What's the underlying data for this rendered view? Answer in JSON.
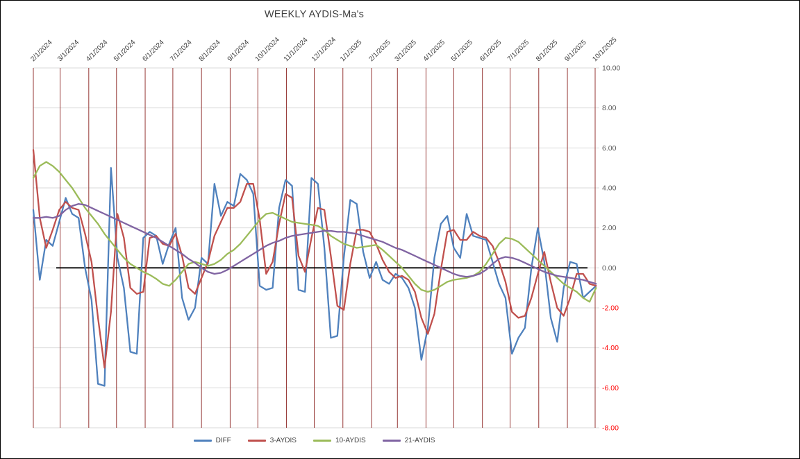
{
  "chart_data": {
    "type": "line",
    "title": "WEEKLY AYDIS-Ma's",
    "grid": "on",
    "legend_position": "bottom",
    "ylim": [
      -8,
      10
    ],
    "weeks_total": 86.86,
    "colors": {
      "vertical_grid": "#953735",
      "horizontal_grid": "#D9D9D9",
      "zero_line": "#000000",
      "axis_label": "#595959",
      "date_label": "#404040",
      "negative_label": "#FF0000"
    },
    "y_ticks": [
      {
        "value": 10,
        "label": "10.00"
      },
      {
        "value": 8,
        "label": "8.00"
      },
      {
        "value": 6,
        "label": "6.00"
      },
      {
        "value": 4,
        "label": "4.00"
      },
      {
        "value": 2,
        "label": "2.00"
      },
      {
        "value": 0,
        "label": "0.00"
      },
      {
        "value": -2,
        "label": "-2.00"
      },
      {
        "value": -4,
        "label": "-4.00"
      },
      {
        "value": -6,
        "label": "-6.00"
      },
      {
        "value": -8,
        "label": "-8.00"
      }
    ],
    "x_ticks": [
      {
        "label": "2/1/2024",
        "week": 0
      },
      {
        "label": "3/1/2024",
        "week": 4.14
      },
      {
        "label": "4/1/2024",
        "week": 8.57
      },
      {
        "label": "5/1/2024",
        "week": 12.86
      },
      {
        "label": "6/1/2024",
        "week": 17.29
      },
      {
        "label": "7/1/2024",
        "week": 21.57
      },
      {
        "label": "8/1/2024",
        "week": 26.0
      },
      {
        "label": "9/1/2024",
        "week": 30.43
      },
      {
        "label": "10/1/2024",
        "week": 34.71
      },
      {
        "label": "11/1/2024",
        "week": 39.14
      },
      {
        "label": "12/1/2024",
        "week": 43.43
      },
      {
        "label": "1/1/2025",
        "week": 47.86
      },
      {
        "label": "2/1/2025",
        "week": 52.29
      },
      {
        "label": "3/1/2025",
        "week": 56.29
      },
      {
        "label": "4/1/2025",
        "week": 60.71
      },
      {
        "label": "5/1/2025",
        "week": 65.0
      },
      {
        "label": "6/1/2025",
        "week": 69.43
      },
      {
        "label": "7/1/2025",
        "week": 73.71
      },
      {
        "label": "8/1/2025",
        "week": 78.14
      },
      {
        "label": "9/1/2025",
        "week": 82.57
      },
      {
        "label": "10/1/2025",
        "week": 86.86
      }
    ],
    "series": [
      {
        "name": "DIFF",
        "color": "#4F81BD",
        "values": [
          2.9,
          -0.6,
          1.4,
          1.1,
          2.3,
          3.5,
          2.7,
          2.5,
          0.0,
          -1.6,
          -5.8,
          -5.9,
          5.0,
          0.5,
          -1.0,
          -4.2,
          -4.3,
          1.5,
          1.8,
          1.6,
          0.2,
          1.2,
          2.0,
          -1.5,
          -2.6,
          -2.0,
          0.5,
          0.2,
          4.2,
          2.6,
          3.3,
          3.1,
          4.7,
          4.4,
          3.7,
          -0.9,
          -1.1,
          -1.0,
          3.0,
          4.4,
          4.1,
          -1.1,
          -1.2,
          4.5,
          4.2,
          1.0,
          -3.5,
          -3.4,
          0.5,
          3.4,
          3.2,
          0.8,
          -0.5,
          0.3,
          -0.6,
          -0.8,
          -0.3,
          -0.5,
          -1.0,
          -2.0,
          -4.6,
          -3.0,
          0.5,
          2.2,
          2.6,
          1.0,
          0.5,
          2.7,
          1.6,
          1.5,
          1.4,
          0.3,
          -0.8,
          -1.5,
          -4.3,
          -3.5,
          -3.0,
          0.0,
          2.0,
          0.3,
          -2.5,
          -3.7,
          -1.0,
          0.3,
          0.2,
          -1.5,
          -1.2,
          -0.9
        ]
      },
      {
        "name": "3-AYDIS",
        "color": "#C0504D",
        "values": [
          5.9,
          2.5,
          1.0,
          1.9,
          2.9,
          3.3,
          3.0,
          2.9,
          1.7,
          0.3,
          -2.5,
          -5.0,
          -2.2,
          2.7,
          1.5,
          -1.0,
          -1.3,
          -1.2,
          1.5,
          1.6,
          1.2,
          1.1,
          1.7,
          0.6,
          -1.0,
          -1.3,
          -0.5,
          0.3,
          1.6,
          2.3,
          3.0,
          3.0,
          3.3,
          4.2,
          4.2,
          2.4,
          -0.3,
          0.3,
          2.2,
          3.7,
          3.5,
          0.6,
          -0.2,
          1.5,
          3.0,
          2.9,
          0.6,
          -1.9,
          -2.1,
          0.2,
          1.9,
          1.9,
          1.8,
          1.2,
          0.4,
          -0.2,
          -0.5,
          -0.4,
          -0.6,
          -1.2,
          -2.5,
          -3.3,
          -2.3,
          -0.1,
          1.8,
          1.9,
          1.4,
          1.4,
          1.8,
          1.6,
          1.5,
          1.1,
          0.3,
          -0.7,
          -2.2,
          -2.5,
          -2.4,
          -1.5,
          -0.3,
          0.8,
          -0.7,
          -2.0,
          -2.4,
          -1.5,
          -0.3,
          -0.3,
          -0.8,
          -0.9
        ]
      },
      {
        "name": "10-AYDIS",
        "color": "#9BBB59",
        "values": [
          4.5,
          5.1,
          5.3,
          5.1,
          4.8,
          4.4,
          4.0,
          3.5,
          3.0,
          2.6,
          2.2,
          1.7,
          1.3,
          0.9,
          0.5,
          0.2,
          0.0,
          -0.2,
          -0.35,
          -0.55,
          -0.8,
          -0.9,
          -0.6,
          -0.2,
          0.2,
          0.3,
          0.2,
          0.1,
          0.2,
          0.4,
          0.7,
          0.9,
          1.2,
          1.6,
          2.0,
          2.4,
          2.7,
          2.75,
          2.6,
          2.45,
          2.3,
          2.25,
          2.2,
          2.15,
          2.1,
          1.9,
          1.6,
          1.4,
          1.2,
          1.1,
          1.0,
          1.05,
          1.1,
          1.15,
          0.9,
          0.6,
          0.3,
          0.0,
          -0.4,
          -0.8,
          -1.1,
          -1.2,
          -1.1,
          -0.9,
          -0.7,
          -0.6,
          -0.55,
          -0.5,
          -0.4,
          -0.2,
          0.2,
          0.7,
          1.2,
          1.5,
          1.45,
          1.3,
          1.0,
          0.7,
          0.4,
          0.1,
          -0.2,
          -0.5,
          -0.8,
          -1.0,
          -1.2,
          -1.5,
          -1.7,
          -1.0
        ]
      },
      {
        "name": "21-AYDIS",
        "color": "#8064A2",
        "values": [
          2.5,
          2.5,
          2.55,
          2.5,
          2.6,
          2.9,
          3.1,
          3.2,
          3.15,
          3.0,
          2.85,
          2.7,
          2.55,
          2.4,
          2.25,
          2.1,
          1.95,
          1.8,
          1.65,
          1.5,
          1.3,
          1.1,
          0.9,
          0.7,
          0.45,
          0.25,
          0.0,
          -0.2,
          -0.3,
          -0.25,
          -0.1,
          0.1,
          0.3,
          0.5,
          0.7,
          0.9,
          1.1,
          1.25,
          1.35,
          1.5,
          1.6,
          1.65,
          1.7,
          1.75,
          1.8,
          1.85,
          1.85,
          1.8,
          1.8,
          1.75,
          1.7,
          1.6,
          1.5,
          1.4,
          1.3,
          1.15,
          1.0,
          0.9,
          0.75,
          0.6,
          0.45,
          0.3,
          0.15,
          0.0,
          -0.15,
          -0.3,
          -0.4,
          -0.45,
          -0.4,
          -0.3,
          -0.1,
          0.2,
          0.45,
          0.55,
          0.5,
          0.4,
          0.25,
          0.1,
          -0.05,
          -0.2,
          -0.3,
          -0.4,
          -0.45,
          -0.5,
          -0.55,
          -0.6,
          -0.7,
          -0.8
        ]
      }
    ]
  }
}
